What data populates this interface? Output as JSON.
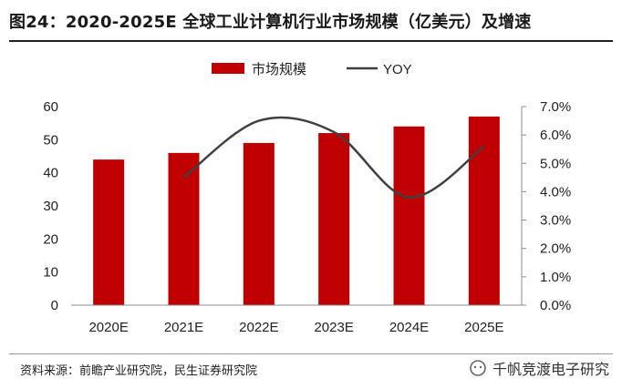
{
  "header": {
    "title": "图24：2020-2025E 全球工业计算机行业市场规模（亿美元）及增速"
  },
  "footer": {
    "source": "资料来源：前瞻产业研究院，民生证券研究院",
    "watermark": "千帆竞渡电子研究"
  },
  "colors": {
    "bar": "#c00000",
    "line": "#404040",
    "axis": "#8c8c8c"
  },
  "chart_data": {
    "type": "bar+line",
    "categories": [
      "2020E",
      "2021E",
      "2022E",
      "2023E",
      "2024E",
      "2025E"
    ],
    "series": [
      {
        "name": "市场规模",
        "type": "bar",
        "axis": "left",
        "values": [
          44,
          46,
          49,
          52,
          54,
          57
        ]
      },
      {
        "name": "YOY",
        "type": "line",
        "axis": "right",
        "values": [
          null,
          4.5,
          6.5,
          6.1,
          3.8,
          5.6
        ]
      }
    ],
    "left_axis": {
      "min": 0,
      "max": 60,
      "ticks": [
        "0",
        "10",
        "20",
        "30",
        "40",
        "50",
        "60"
      ]
    },
    "right_axis": {
      "min": 0,
      "max": 7,
      "ticks": [
        "0.0%",
        "1.0%",
        "2.0%",
        "3.0%",
        "4.0%",
        "5.0%",
        "6.0%",
        "7.0%"
      ]
    },
    "legend": [
      "市场规模",
      "YOY"
    ]
  }
}
